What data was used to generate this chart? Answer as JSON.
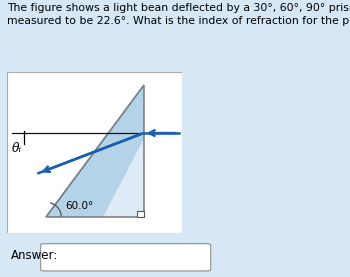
{
  "title_text": "The figure shows a light bean deflected by a 30°, 60°, 90° prism. The deflected angle θᵢ is\nmeasured to be 22.6°. What is the index of refraction for the prism?",
  "title_fontsize": 7.8,
  "bg_color": "#d6e8f5",
  "prism_fill_dark": "#8ab8d8",
  "prism_fill_light": "#c8dff0",
  "prism_edge": "#4a4a4a",
  "answer_label": "Answer:",
  "angle_label": "60.0°",
  "theta_label": "θᵢ",
  "arrow_color": "#1a5fb0",
  "line_color": "#111111",
  "diagram_bg": "#ffffff",
  "diagram_box_edge": "#aaaaaa"
}
